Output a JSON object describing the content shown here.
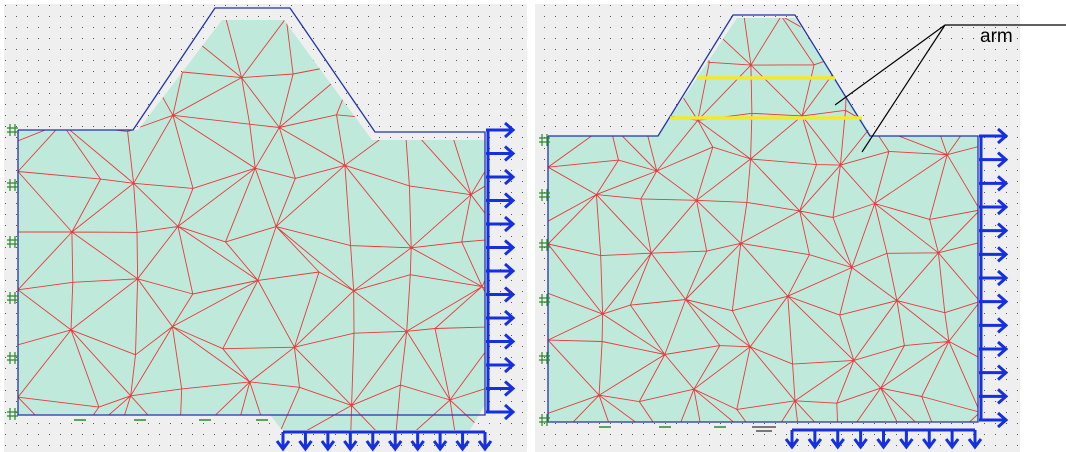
{
  "annotation": {
    "label": "arm"
  }
}
